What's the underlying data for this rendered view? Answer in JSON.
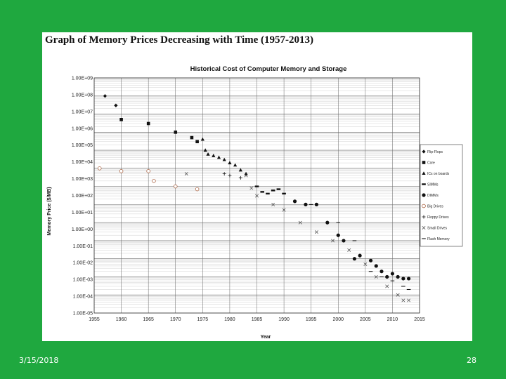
{
  "slide": {
    "headline": "Graph of Memory Prices Decreasing with Time (1957-2013)",
    "footer_date": "3/15/2018",
    "page_number": "28",
    "background_color": "#1fa83f"
  },
  "chart_data": {
    "type": "scatter",
    "title": "Historical Cost of Computer Memory and Storage",
    "xlabel": "Year",
    "ylabel": "Memory Price ($/MB)",
    "xlim": [
      1955,
      2015
    ],
    "x_ticks": [
      "1955",
      "1960",
      "1965",
      "1970",
      "1975",
      "1980",
      "1985",
      "1990",
      "1995",
      "2000",
      "2005",
      "2010",
      "2015"
    ],
    "y_log_scale": true,
    "ylim_exponent": [
      -4,
      9
    ],
    "y_ticks": [
      "1.00E+09",
      "1.00E+08",
      "1.00E+07",
      "1.00E+06",
      "1.00E+05",
      "1.00E+04",
      "1.00E+03",
      "1.00E+02",
      "1.00E+01",
      "1.00E+00",
      "1.00E-01",
      "1.00E-02",
      "1.00E-03",
      "1.00E-04",
      "1.00E-05"
    ],
    "grid": true,
    "legend_position": "right",
    "series": [
      {
        "name": "Flip-Flops",
        "marker": "diamond",
        "points": [
          [
            1957,
            100000000.0
          ],
          [
            1959,
            30000000.0
          ]
        ]
      },
      {
        "name": "Core",
        "marker": "square",
        "points": [
          [
            1960,
            5000000.0
          ],
          [
            1965,
            3000000.0
          ],
          [
            1970,
            1000000.0
          ],
          [
            1973,
            500000.0
          ],
          [
            1974,
            300000.0
          ]
        ]
      },
      {
        "name": "ICs on boards",
        "marker": "triangle",
        "points": [
          [
            1975,
            400000.0
          ],
          [
            1975.5,
            100000.0
          ],
          [
            1976,
            60000.0
          ],
          [
            1977,
            50000.0
          ],
          [
            1978,
            40000.0
          ],
          [
            1979,
            30000.0
          ],
          [
            1980,
            20000.0
          ],
          [
            1981,
            15000.0
          ],
          [
            1982,
            8000.0
          ],
          [
            1983,
            5000.0
          ]
        ]
      },
      {
        "name": "SIMMs",
        "marker": "bar",
        "points": [
          [
            1985,
            1000.0
          ],
          [
            1986,
            500.0
          ],
          [
            1987,
            400.0
          ],
          [
            1988,
            600.0
          ],
          [
            1989,
            700.0
          ],
          [
            1990,
            400.0
          ]
        ]
      },
      {
        "name": "DIMMs",
        "marker": "dot",
        "points": [
          [
            1992,
            150.0
          ],
          [
            1994,
            100.0
          ],
          [
            1996,
            100.0
          ],
          [
            1998,
            10.0
          ],
          [
            2000,
            2.0
          ],
          [
            2001,
            1.0
          ],
          [
            2003,
            0.1
          ],
          [
            2004,
            0.15
          ],
          [
            2006,
            0.08
          ],
          [
            2007,
            0.04
          ],
          [
            2008,
            0.02
          ],
          [
            2009,
            0.01
          ],
          [
            2010,
            0.015
          ],
          [
            2011,
            0.01
          ],
          [
            2012,
            0.008
          ],
          [
            2013,
            0.008
          ]
        ]
      },
      {
        "name": "Big Drives",
        "marker": "circle",
        "points": [
          [
            1956,
            10000.0
          ],
          [
            1960,
            7000.0
          ],
          [
            1965,
            7000.0
          ],
          [
            1966,
            2000.0
          ],
          [
            1970,
            1000.0
          ],
          [
            1974,
            700.0
          ]
        ]
      },
      {
        "name": "Floppy Drives",
        "marker": "plus",
        "points": [
          [
            1959,
            30000000.0
          ],
          [
            1979,
            5000.0
          ],
          [
            1980,
            4000.0
          ],
          [
            1982,
            3000.0
          ]
        ]
      },
      {
        "name": "Small Drives",
        "marker": "x",
        "points": [
          [
            1972,
            5000.0
          ],
          [
            1983,
            4000.0
          ],
          [
            1984,
            800.0
          ],
          [
            1985,
            300.0
          ],
          [
            1988,
            100.0
          ],
          [
            1990,
            50.0
          ],
          [
            1993,
            10.0
          ],
          [
            1996,
            3.0
          ],
          [
            1999,
            1.0
          ],
          [
            2002,
            0.3
          ],
          [
            2005,
            0.05
          ],
          [
            2007,
            0.01
          ],
          [
            2009,
            0.003
          ],
          [
            2011,
            0.001
          ],
          [
            2012,
            0.0005
          ],
          [
            2013,
            0.0005
          ]
        ]
      },
      {
        "name": "Flash Memory",
        "marker": "dash",
        "points": [
          [
            1995,
            100.0
          ],
          [
            2000,
            10.0
          ],
          [
            2003,
            1.0
          ],
          [
            2006,
            0.02
          ],
          [
            2008,
            0.01
          ],
          [
            2010,
            0.006
          ],
          [
            2012,
            0.003
          ],
          [
            2013,
            0.002
          ]
        ]
      }
    ]
  }
}
